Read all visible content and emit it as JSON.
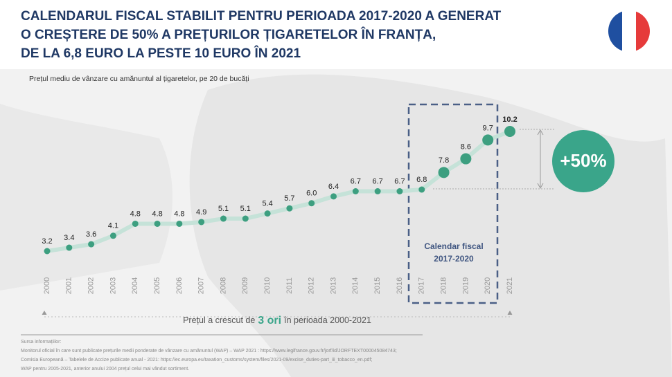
{
  "chart_data": {
    "type": "line",
    "title": [
      "CALENDARUL FISCAL STABILIT PENTRU PERIOADA 2017-2020 A GENERAT",
      "O CREȘTERE DE 50% A PREȚURILOR ȚIGARETELOR ÎN FRANȚA,",
      "DE LA 6,8 EURO LA PESTE 10 EURO ÎN 2021"
    ],
    "subtitle": "Prețul mediu de vânzare cu amănuntul al țigaretelor, pe 20 de bucăți",
    "categories": [
      "2000",
      "2001",
      "2002",
      "2003",
      "2004",
      "2005",
      "2006",
      "2007",
      "2008",
      "2009",
      "2010",
      "2011",
      "2012",
      "2013",
      "2014",
      "2015",
      "2016",
      "2017",
      "2018",
      "2019",
      "2020",
      "2021"
    ],
    "values": [
      3.2,
      3.4,
      3.6,
      4.1,
      4.8,
      4.8,
      4.8,
      4.9,
      5.1,
      5.1,
      5.4,
      5.7,
      6.0,
      6.4,
      6.7,
      6.7,
      6.7,
      6.8,
      7.8,
      8.6,
      9.7,
      10.2
    ],
    "value_labels": [
      "3.2",
      "3.4",
      "3.6",
      "4.1",
      "4.8",
      "4.8",
      "4.8",
      "4.9",
      "5.1",
      "5.1",
      "5.4",
      "5.7",
      "6.0",
      "6.4",
      "6.7",
      "6.7",
      "6.7",
      "6.8",
      "7.8",
      "8.6",
      "9.7",
      "10.2"
    ],
    "color": "#3d9f80",
    "highlight_label": [
      "Calendar fiscal",
      "2017-2020"
    ],
    "badge": "+50%",
    "footnote": [
      "Prețul a crescut de",
      "3 ori",
      "în perioada 2000-2021"
    ],
    "sources": [
      "Sursa informațiilor:",
      "Monitorul oficial în care sunt publicate prețurile medii ponderate de vânzare cu amănuntul (WAP) – WAP 2021 : https://www.legifrance.gouv.fr/jorf/id/JORFTEXT000045084743;",
      "Comisia Europeană – Tabelele de Accize publicate anual - 2021: https://ec.europa.eu/taxation_customs/system/files/2021-09/excise_duties-part_iii_tobacco_en.pdf;",
      "WAP pentru 2005-2021, anterior anului 2004 prețul celui mai vândut sortiment."
    ]
  }
}
